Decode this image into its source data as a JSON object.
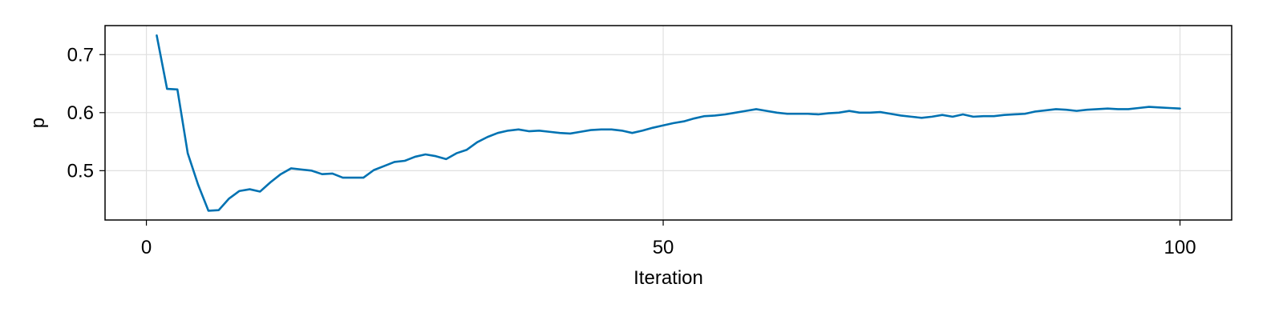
{
  "chart_data": {
    "type": "line",
    "title": "",
    "xlabel": "Iteration",
    "ylabel": "p",
    "xlim": [
      -4,
      105
    ],
    "ylim": [
      0.415,
      0.75
    ],
    "x_ticks": [
      0,
      50,
      100
    ],
    "x_tick_labels": [
      "0",
      "50",
      "100"
    ],
    "y_ticks": [
      0.5,
      0.6,
      0.7
    ],
    "y_tick_labels": [
      "0.5",
      "0.6",
      "0.7"
    ],
    "grid": true,
    "legend": "none",
    "colors": {
      "series": "#0072b2",
      "grid": "#e0e0e0",
      "frame": "#000000"
    },
    "series": [
      {
        "x": [
          1,
          2,
          3,
          4,
          5,
          6,
          7,
          8,
          9,
          10,
          11,
          12,
          13,
          14,
          15,
          16,
          17,
          18,
          19,
          20,
          21,
          22,
          23,
          24,
          25,
          26,
          27,
          28,
          29,
          30,
          31,
          32,
          33,
          34,
          35,
          36,
          37,
          38,
          39,
          40,
          41,
          42,
          43,
          44,
          45,
          46,
          47,
          48,
          49,
          50,
          51,
          52,
          53,
          54,
          55,
          56,
          57,
          58,
          59,
          60,
          61,
          62,
          63,
          64,
          65,
          66,
          67,
          68,
          69,
          70,
          71,
          72,
          73,
          74,
          75,
          76,
          77,
          78,
          79,
          80,
          81,
          82,
          83,
          84,
          85,
          86,
          87,
          88,
          89,
          90,
          91,
          92,
          93,
          94,
          95,
          96,
          97,
          98,
          99,
          100
        ],
        "values": [
          0.733,
          0.641,
          0.64,
          0.53,
          0.476,
          0.431,
          0.432,
          0.452,
          0.465,
          0.468,
          0.464,
          0.48,
          0.494,
          0.504,
          0.502,
          0.5,
          0.494,
          0.495,
          0.488,
          0.488,
          0.488,
          0.501,
          0.508,
          0.515,
          0.517,
          0.524,
          0.528,
          0.525,
          0.52,
          0.53,
          0.536,
          0.549,
          0.558,
          0.565,
          0.569,
          0.571,
          0.568,
          0.569,
          0.567,
          0.565,
          0.564,
          0.567,
          0.57,
          0.571,
          0.571,
          0.569,
          0.565,
          0.569,
          0.574,
          0.578,
          0.582,
          0.585,
          0.59,
          0.594,
          0.595,
          0.597,
          0.6,
          0.603,
          0.606,
          0.603,
          0.6,
          0.598,
          0.598,
          0.598,
          0.597,
          0.599,
          0.6,
          0.603,
          0.6,
          0.6,
          0.601,
          0.598,
          0.595,
          0.593,
          0.591,
          0.593,
          0.596,
          0.593,
          0.597,
          0.593,
          0.594,
          0.594,
          0.596,
          0.597,
          0.598,
          0.602,
          0.604,
          0.606,
          0.605,
          0.603,
          0.605,
          0.606,
          0.607,
          0.606,
          0.606,
          0.608,
          0.61,
          0.609,
          0.608,
          0.607
        ]
      }
    ]
  }
}
